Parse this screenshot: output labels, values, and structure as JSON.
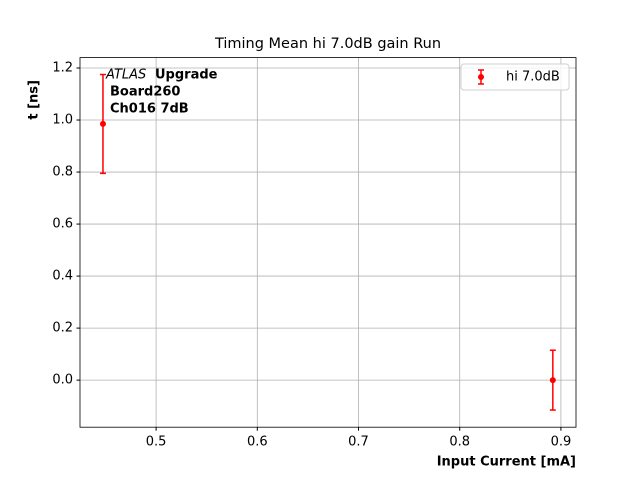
{
  "chart_data": {
    "type": "errorbar",
    "title": "Timing Mean hi 7.0dB gain Run",
    "xlabel": "Input Current [mA]",
    "ylabel": "t [ns]",
    "annotation": [
      "ATLAS",
      "Upgrade",
      "Board260",
      "Ch016 7dB"
    ],
    "series": [
      {
        "name": "hi 7.0dB",
        "color": "#ff0000",
        "x": [
          0.4475,
          0.892
        ],
        "values": [
          0.985,
          0.0
        ],
        "errors": [
          0.19,
          0.115
        ]
      }
    ],
    "xlim": [
      0.4248,
      0.9149
    ],
    "ylim": [
      -0.181,
      1.24
    ],
    "xticks": [
      0.5,
      0.6,
      0.7,
      0.8,
      0.9
    ],
    "yticks": [
      {
        "value": 0,
        "label": "0.0"
      },
      0.2,
      0.4,
      0.6,
      0.8,
      {
        "value": 1,
        "label": "1.0"
      },
      1.2
    ],
    "grid": true,
    "legend": "upper right"
  }
}
